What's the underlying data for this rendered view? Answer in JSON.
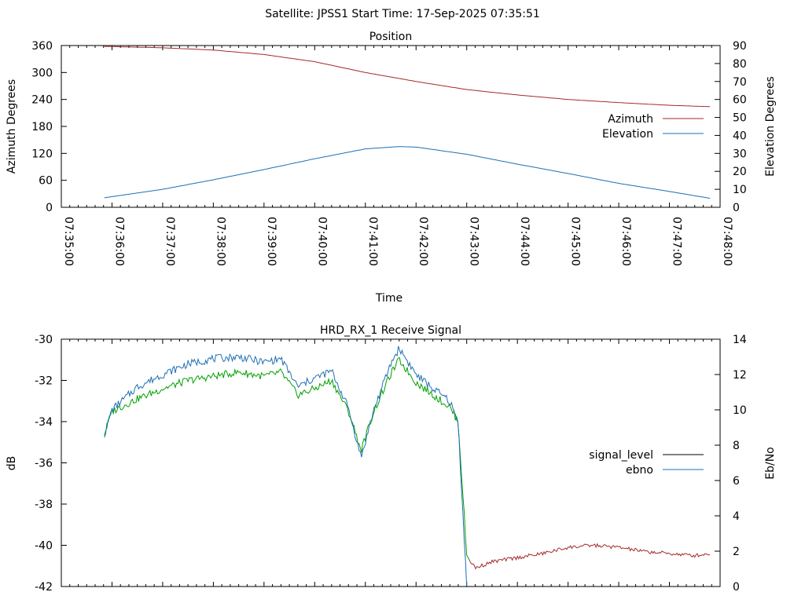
{
  "suptitle": "Satellite: JPSS1    Start Time: 17-Sep-2025 07:35:51",
  "chart_data": [
    {
      "type": "line",
      "title": "Position",
      "xlabel": "Time",
      "ylabel_left": "Azimuth Degrees",
      "ylabel_right": "Elevation Degrees",
      "xlim": [
        "07:35:00",
        "07:48:00"
      ],
      "x_ticks": [
        "07:35:00",
        "07:36:00",
        "07:37:00",
        "07:38:00",
        "07:39:00",
        "07:40:00",
        "07:41:00",
        "07:42:00",
        "07:43:00",
        "07:44:00",
        "07:45:00",
        "07:46:00",
        "07:47:00",
        "07:48:00"
      ],
      "ylim_left": [
        0,
        360
      ],
      "yticks_left": [
        "0",
        "60",
        "120",
        "180",
        "240",
        "300",
        "360"
      ],
      "ylim_right": [
        0,
        90
      ],
      "yticks_right": [
        "0",
        "10",
        "20",
        "30",
        "40",
        "50",
        "60",
        "70",
        "80",
        "90"
      ],
      "legend_position": "right",
      "series": [
        {
          "name": "Azimuth",
          "axis": "left",
          "color": "#a52a2a",
          "x": [
            "07:35:51",
            "07:37:00",
            "07:38:00",
            "07:39:00",
            "07:40:00",
            "07:41:00",
            "07:42:00",
            "07:43:00",
            "07:44:00",
            "07:45:00",
            "07:46:00",
            "07:47:00",
            "07:47:48"
          ],
          "y": [
            358,
            355,
            350,
            340,
            324,
            300,
            280,
            262,
            250,
            240,
            233,
            227,
            224
          ]
        },
        {
          "name": "Elevation",
          "axis": "right",
          "color": "#1f6fb4",
          "x": [
            "07:35:51",
            "07:37:00",
            "07:38:00",
            "07:39:00",
            "07:40:00",
            "07:41:00",
            "07:41:40",
            "07:42:00",
            "07:43:00",
            "07:44:00",
            "07:45:00",
            "07:46:00",
            "07:47:00",
            "07:47:48"
          ],
          "y": [
            5.3,
            10,
            15.3,
            21,
            27,
            32.5,
            33.8,
            33.5,
            29.5,
            24,
            18.8,
            13.3,
            8.8,
            5
          ]
        }
      ]
    },
    {
      "type": "line",
      "title": "HRD_RX_1 Receive Signal",
      "xlabel": "",
      "ylabel_left": "dB",
      "ylabel_right": "Eb/No",
      "xlim": [
        "07:35:00",
        "07:48:00"
      ],
      "ylim_left": [
        -42,
        -30
      ],
      "yticks_left": [
        "-42",
        "-40",
        "-38",
        "-36",
        "-34",
        "-32",
        "-30"
      ],
      "ylim_right": [
        0,
        14
      ],
      "yticks_right": [
        "0",
        "2",
        "4",
        "6",
        "8",
        "10",
        "12",
        "14"
      ],
      "legend_position": "right",
      "series": [
        {
          "name": "signal_level",
          "axis": "left",
          "color": "#000000",
          "x": [
            "07:35:51",
            "07:36:00",
            "07:36:30",
            "07:37:00",
            "07:37:30",
            "07:38:00",
            "07:38:30",
            "07:39:00",
            "07:39:20",
            "07:39:40",
            "07:40:00",
            "07:40:20",
            "07:40:40",
            "07:40:55",
            "07:41:10",
            "07:41:30",
            "07:41:40",
            "07:42:00",
            "07:42:20",
            "07:42:40",
            "07:42:50",
            "07:43:00",
            "07:43:10",
            "07:43:30",
            "07:44:00",
            "07:44:30",
            "07:45:00",
            "07:45:30",
            "07:46:00",
            "07:46:30",
            "07:47:00",
            "07:47:30",
            "07:47:48"
          ],
          "y": [
            -34.6,
            -33.5,
            -32.9,
            -32.4,
            -32.0,
            -31.8,
            -31.6,
            -31.8,
            -31.6,
            -32.7,
            -32.4,
            -32.0,
            -33.5,
            -35.4,
            -33.5,
            -31.7,
            -31.0,
            -32.1,
            -32.7,
            -33.3,
            -34.0,
            -40.5,
            -41.1,
            -40.8,
            -40.6,
            -40.4,
            -40.1,
            -40.0,
            -40.1,
            -40.3,
            -40.4,
            -40.5,
            -40.4
          ]
        },
        {
          "name": "ebno",
          "axis": "right",
          "color": "#1f6fb4",
          "x": [
            "07:35:51",
            "07:36:00",
            "07:36:30",
            "07:37:00",
            "07:37:30",
            "07:38:00",
            "07:38:30",
            "07:39:00",
            "07:39:20",
            "07:39:40",
            "07:40:00",
            "07:40:20",
            "07:40:40",
            "07:40:55",
            "07:41:10",
            "07:41:30",
            "07:41:40",
            "07:42:00",
            "07:42:20",
            "07:42:40",
            "07:42:50",
            "07:43:00"
          ],
          "y": [
            8.6,
            10.0,
            11.3,
            12.0,
            12.6,
            12.9,
            13.0,
            12.7,
            12.9,
            11.3,
            11.8,
            12.2,
            10.1,
            7.3,
            10.0,
            12.6,
            13.5,
            12.0,
            11.2,
            10.5,
            9.2,
            0
          ]
        }
      ]
    }
  ]
}
